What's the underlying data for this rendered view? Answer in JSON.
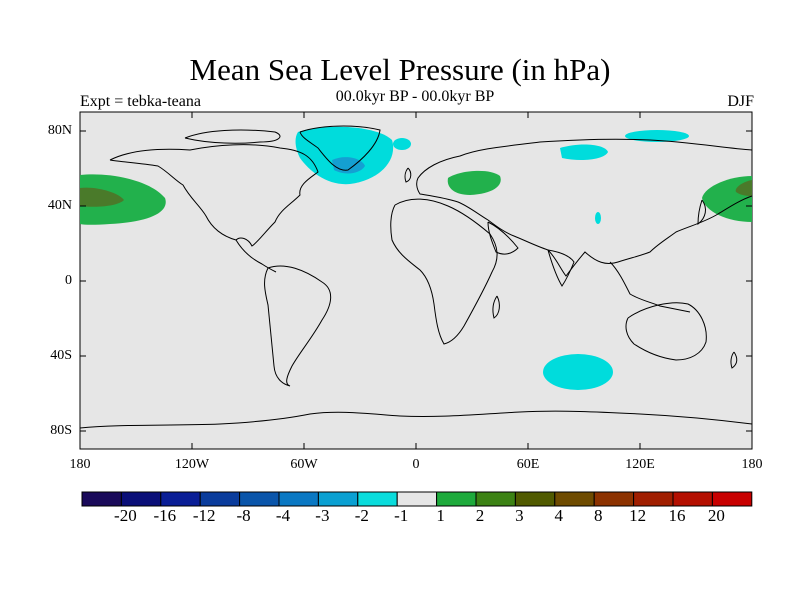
{
  "title": "Mean Sea Level Pressure (in hPa)",
  "experiment_label": "Expt = tebka-teana",
  "period_label": "00.0kyr BP - 00.0kyr BP",
  "season_label": "DJF",
  "lat_axis": [
    "80N",
    "40N",
    "0",
    "40S",
    "80S"
  ],
  "lon_axis": [
    "180",
    "120W",
    "60W",
    "0",
    "60E",
    "120E",
    "180"
  ],
  "colorbar": {
    "labels": [
      "-20",
      "-16",
      "-12",
      "-8",
      "-4",
      "-3",
      "-2",
      "-1",
      "1",
      "2",
      "3",
      "4",
      "8",
      "12",
      "16",
      "20"
    ],
    "colors": [
      "#1a0a5a",
      "#0a0f78",
      "#0a1e96",
      "#0a3c9c",
      "#0a55aa",
      "#0a78c3",
      "#0aa0d2",
      "#0adcdc",
      "#e6e6e6",
      "#1eaa3c",
      "#3c8214",
      "#505a00",
      "#6e4b00",
      "#8c3200",
      "#a01e00",
      "#b40f00",
      "#c80000"
    ]
  },
  "colors": {
    "background": "#e6e6e6",
    "negative_light": "#00dcdc",
    "negative_mid": "#14a0d2",
    "positive_light": "#22b14c",
    "positive_dark": "#4a7a2a"
  }
}
